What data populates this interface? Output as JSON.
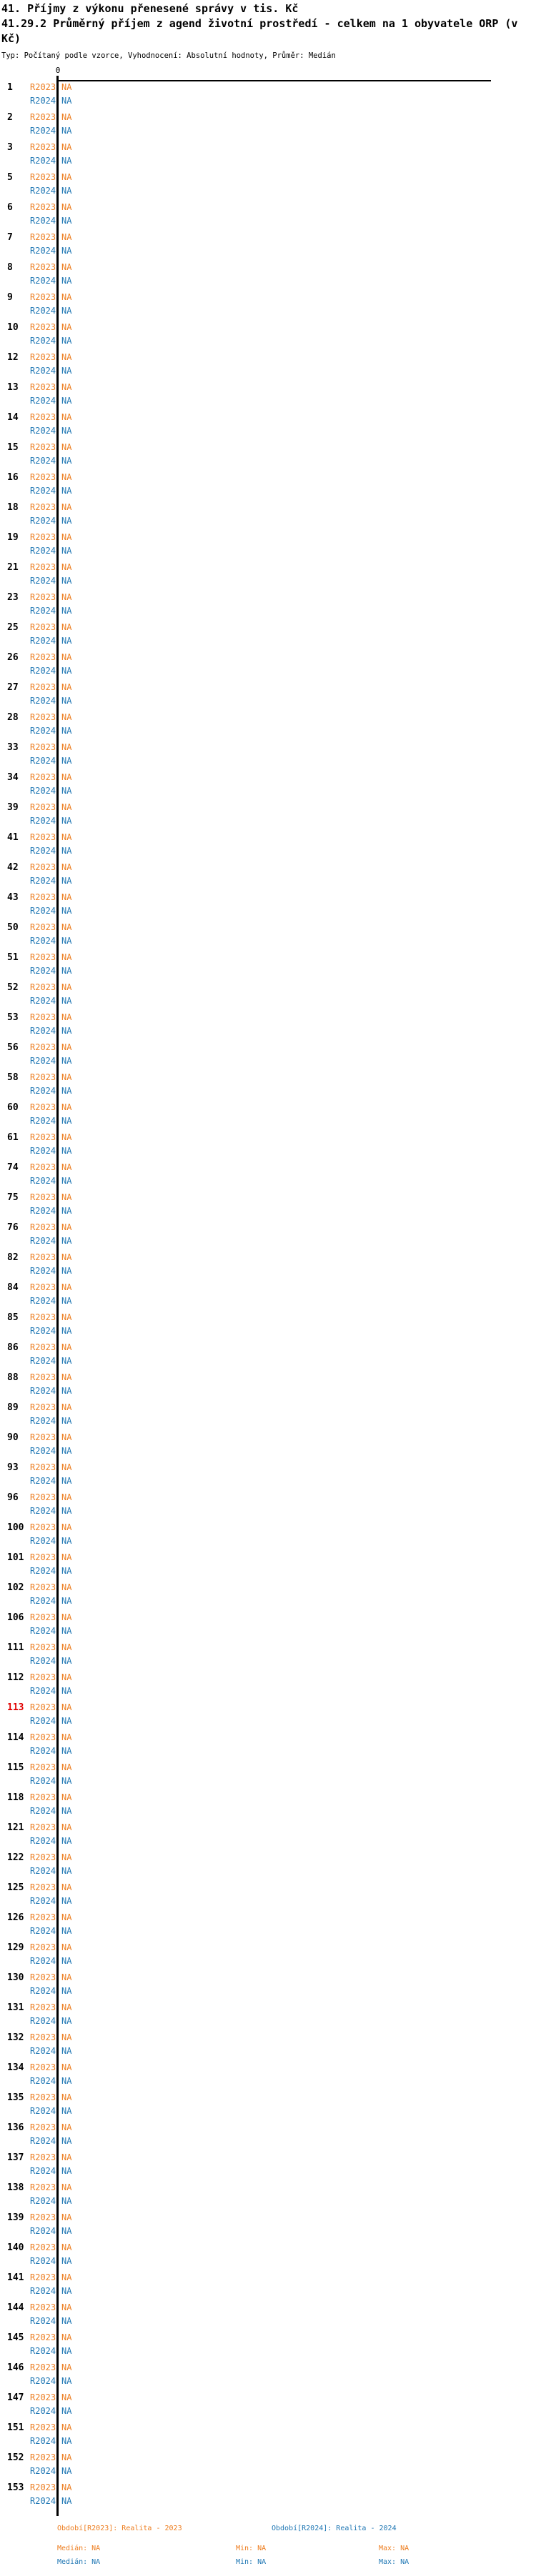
{
  "header": {
    "title_line1": "41. Příjmy z výkonu přenesené správy v tis. Kč",
    "title_line2": "41.29.2 Průměrný příjem z agend životní prostředí - celkem na 1 obyvatele ORP (v Kč)",
    "subtitle": "Typ: Počítaný podle vzorce, Vyhodnocení: Absolutní hodnoty, Průměr: Medián"
  },
  "colors": {
    "series_2023": "#ed7d1f",
    "series_2024": "#1f77b4",
    "highlight_row": "#e00000",
    "axis": "#000000"
  },
  "chart_data": {
    "type": "bar",
    "orientation": "horizontal",
    "title": "41.29.2 Průměrný příjem z agend životní prostředí - celkem na 1 obyvatele ORP (v Kč)",
    "value_axis": {
      "ticks": [
        "0"
      ],
      "position": "top"
    },
    "note": "All values shown as NA — no bars rendered",
    "series_labels": [
      "R2023",
      "R2024"
    ],
    "highlighted_id": 113,
    "rows": [
      [
        1,
        "NA",
        "NA"
      ],
      [
        2,
        "NA",
        "NA"
      ],
      [
        3,
        "NA",
        "NA"
      ],
      [
        5,
        "NA",
        "NA"
      ],
      [
        6,
        "NA",
        "NA"
      ],
      [
        7,
        "NA",
        "NA"
      ],
      [
        8,
        "NA",
        "NA"
      ],
      [
        9,
        "NA",
        "NA"
      ],
      [
        10,
        "NA",
        "NA"
      ],
      [
        12,
        "NA",
        "NA"
      ],
      [
        13,
        "NA",
        "NA"
      ],
      [
        14,
        "NA",
        "NA"
      ],
      [
        15,
        "NA",
        "NA"
      ],
      [
        16,
        "NA",
        "NA"
      ],
      [
        18,
        "NA",
        "NA"
      ],
      [
        19,
        "NA",
        "NA"
      ],
      [
        21,
        "NA",
        "NA"
      ],
      [
        23,
        "NA",
        "NA"
      ],
      [
        25,
        "NA",
        "NA"
      ],
      [
        26,
        "NA",
        "NA"
      ],
      [
        27,
        "NA",
        "NA"
      ],
      [
        28,
        "NA",
        "NA"
      ],
      [
        33,
        "NA",
        "NA"
      ],
      [
        34,
        "NA",
        "NA"
      ],
      [
        39,
        "NA",
        "NA"
      ],
      [
        41,
        "NA",
        "NA"
      ],
      [
        42,
        "NA",
        "NA"
      ],
      [
        43,
        "NA",
        "NA"
      ],
      [
        50,
        "NA",
        "NA"
      ],
      [
        51,
        "NA",
        "NA"
      ],
      [
        52,
        "NA",
        "NA"
      ],
      [
        53,
        "NA",
        "NA"
      ],
      [
        56,
        "NA",
        "NA"
      ],
      [
        58,
        "NA",
        "NA"
      ],
      [
        60,
        "NA",
        "NA"
      ],
      [
        61,
        "NA",
        "NA"
      ],
      [
        74,
        "NA",
        "NA"
      ],
      [
        75,
        "NA",
        "NA"
      ],
      [
        76,
        "NA",
        "NA"
      ],
      [
        82,
        "NA",
        "NA"
      ],
      [
        84,
        "NA",
        "NA"
      ],
      [
        85,
        "NA",
        "NA"
      ],
      [
        86,
        "NA",
        "NA"
      ],
      [
        88,
        "NA",
        "NA"
      ],
      [
        89,
        "NA",
        "NA"
      ],
      [
        90,
        "NA",
        "NA"
      ],
      [
        93,
        "NA",
        "NA"
      ],
      [
        96,
        "NA",
        "NA"
      ],
      [
        100,
        "NA",
        "NA"
      ],
      [
        101,
        "NA",
        "NA"
      ],
      [
        102,
        "NA",
        "NA"
      ],
      [
        106,
        "NA",
        "NA"
      ],
      [
        111,
        "NA",
        "NA"
      ],
      [
        112,
        "NA",
        "NA"
      ],
      [
        113,
        "NA",
        "NA"
      ],
      [
        114,
        "NA",
        "NA"
      ],
      [
        115,
        "NA",
        "NA"
      ],
      [
        118,
        "NA",
        "NA"
      ],
      [
        121,
        "NA",
        "NA"
      ],
      [
        122,
        "NA",
        "NA"
      ],
      [
        125,
        "NA",
        "NA"
      ],
      [
        126,
        "NA",
        "NA"
      ],
      [
        129,
        "NA",
        "NA"
      ],
      [
        130,
        "NA",
        "NA"
      ],
      [
        131,
        "NA",
        "NA"
      ],
      [
        132,
        "NA",
        "NA"
      ],
      [
        134,
        "NA",
        "NA"
      ],
      [
        135,
        "NA",
        "NA"
      ],
      [
        136,
        "NA",
        "NA"
      ],
      [
        137,
        "NA",
        "NA"
      ],
      [
        138,
        "NA",
        "NA"
      ],
      [
        139,
        "NA",
        "NA"
      ],
      [
        140,
        "NA",
        "NA"
      ],
      [
        141,
        "NA",
        "NA"
      ],
      [
        144,
        "NA",
        "NA"
      ],
      [
        145,
        "NA",
        "NA"
      ],
      [
        146,
        "NA",
        "NA"
      ],
      [
        147,
        "NA",
        "NA"
      ],
      [
        151,
        "NA",
        "NA"
      ],
      [
        152,
        "NA",
        "NA"
      ],
      [
        153,
        "NA",
        "NA"
      ]
    ],
    "legend": {
      "period_2023": "Období[R2023]: Realita - 2023",
      "period_2024": "Období[R2024]: Realita - 2024",
      "stats_2023": {
        "median": "Medián: NA",
        "min": "Min: NA",
        "max": "Max: NA"
      },
      "stats_2024": {
        "median": "Medián: NA",
        "min": "Min: NA",
        "max": "Max: NA"
      }
    }
  }
}
